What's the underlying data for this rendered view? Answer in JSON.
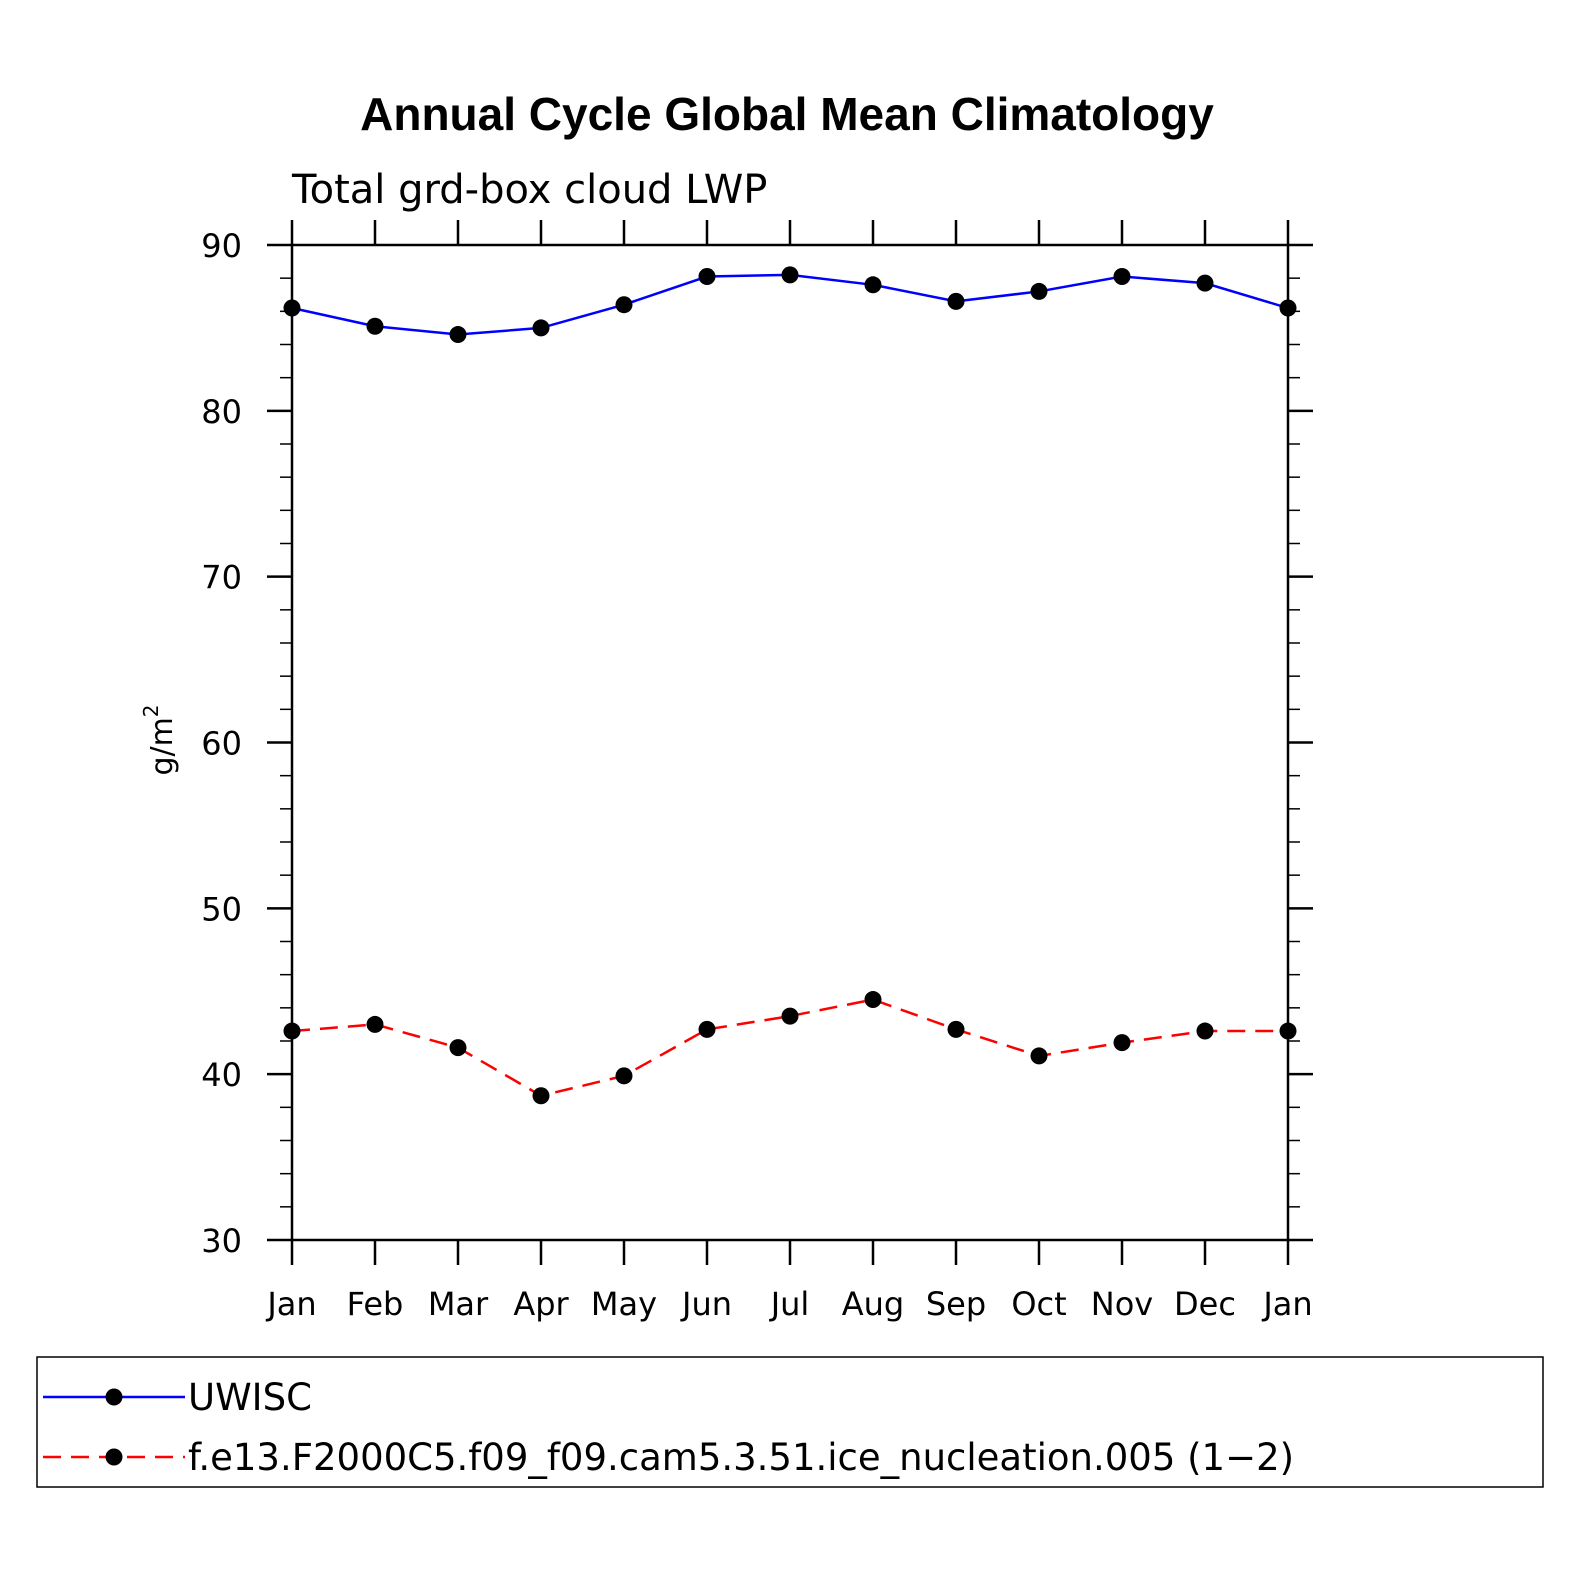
{
  "chart_data": {
    "type": "line",
    "title": "Annual Cycle Global Mean Climatology",
    "subtitle": "Total grd-box cloud LWP",
    "ylabel": "g/m",
    "ylabel_superscript": "2",
    "xlabel": "",
    "categories": [
      "Jan",
      "Feb",
      "Mar",
      "Apr",
      "May",
      "Jun",
      "Jul",
      "Aug",
      "Sep",
      "Oct",
      "Nov",
      "Dec",
      "Jan"
    ],
    "ylim": [
      30,
      90
    ],
    "yticks": [
      "30",
      "40",
      "50",
      "60",
      "70",
      "80",
      "90"
    ],
    "series": [
      {
        "name": "UWISC",
        "color": "#0000ff",
        "dash": "solid",
        "marker": "filled-circle",
        "values": [
          86.2,
          85.1,
          84.6,
          85.0,
          86.4,
          88.1,
          88.2,
          87.6,
          86.6,
          87.2,
          88.1,
          87.7,
          86.2
        ]
      },
      {
        "name": "f.e13.F2000C5.f09_f09.cam5.3.51.ice_nucleation.005 (1−2)",
        "color": "#ff0000",
        "dash": "dashed",
        "marker": "filled-circle",
        "values": [
          42.6,
          43.0,
          41.6,
          38.7,
          39.9,
          42.7,
          43.5,
          44.5,
          42.7,
          41.1,
          41.9,
          42.6,
          42.6
        ]
      }
    ],
    "legend_position": "bottom",
    "grid": false
  }
}
